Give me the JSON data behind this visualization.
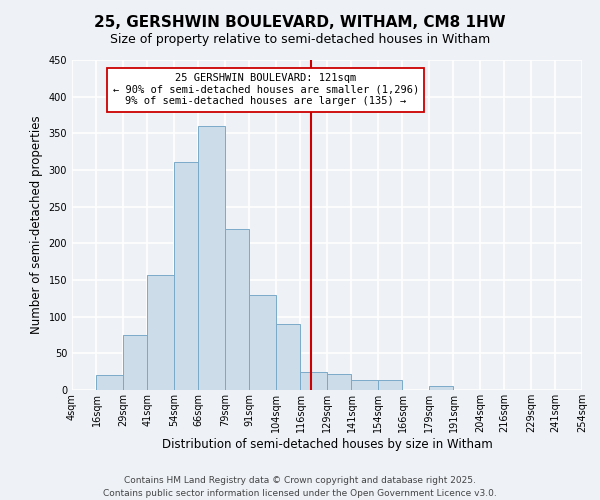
{
  "title": "25, GERSHWIN BOULEVARD, WITHAM, CM8 1HW",
  "subtitle": "Size of property relative to semi-detached houses in Witham",
  "xlabel": "Distribution of semi-detached houses by size in Witham",
  "ylabel": "Number of semi-detached properties",
  "bin_edges": [
    4,
    16,
    29,
    41,
    54,
    66,
    79,
    91,
    104,
    116,
    129,
    141,
    154,
    166,
    179,
    191,
    204,
    216,
    229,
    241,
    254
  ],
  "bar_heights": [
    0,
    20,
    75,
    157,
    311,
    360,
    220,
    130,
    90,
    25,
    22,
    14,
    13,
    0,
    5,
    0,
    0,
    0,
    0,
    0
  ],
  "bar_color": "#ccdce8",
  "bar_edgecolor": "#7aaac8",
  "vline_x": 121,
  "vline_color": "#cc0000",
  "annotation_title": "25 GERSHWIN BOULEVARD: 121sqm",
  "annotation_line1": "← 90% of semi-detached houses are smaller (1,296)",
  "annotation_line2": "9% of semi-detached houses are larger (135) →",
  "annotation_box_color": "#ffffff",
  "annotation_box_edgecolor": "#cc0000",
  "ylim": [
    0,
    450
  ],
  "xlim": [
    4,
    254
  ],
  "tick_labels": [
    "4sqm",
    "16sqm",
    "29sqm",
    "41sqm",
    "54sqm",
    "66sqm",
    "79sqm",
    "91sqm",
    "104sqm",
    "116sqm",
    "129sqm",
    "141sqm",
    "154sqm",
    "166sqm",
    "179sqm",
    "191sqm",
    "204sqm",
    "216sqm",
    "229sqm",
    "241sqm",
    "254sqm"
  ],
  "tick_positions": [
    4,
    16,
    29,
    41,
    54,
    66,
    79,
    91,
    104,
    116,
    129,
    141,
    154,
    166,
    179,
    191,
    204,
    216,
    229,
    241,
    254
  ],
  "footer1": "Contains HM Land Registry data © Crown copyright and database right 2025.",
  "footer2": "Contains public sector information licensed under the Open Government Licence v3.0.",
  "background_color": "#eef2f7",
  "grid_color": "#ffffff",
  "title_fontsize": 11,
  "subtitle_fontsize": 9,
  "axis_label_fontsize": 8.5,
  "tick_fontsize": 7,
  "footer_fontsize": 6.5,
  "ann_fontsize": 7.5
}
